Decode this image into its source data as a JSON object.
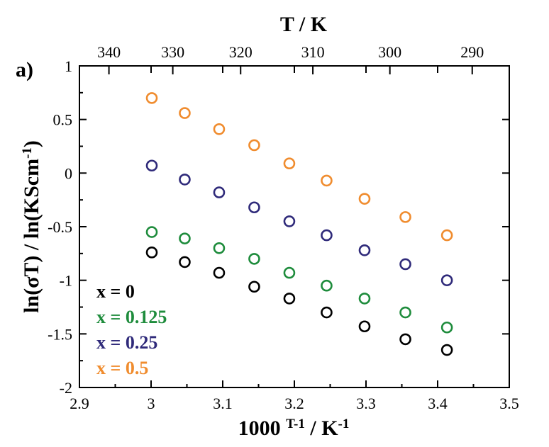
{
  "chart_data": {
    "type": "scatter",
    "panel_label": "a)",
    "xlabel": "1000 T-1 / K-1",
    "xlabel_parts": {
      "base": "1000 ",
      "sup1": "T-1",
      "mid": " / K",
      "sup2": "-1"
    },
    "ylabel": "ln(σT) / ln(KScm-1)",
    "ylabel_parts": {
      "base": "ln(σT) / ln(KScm",
      "sup": "-1",
      "end": ")"
    },
    "top_xlabel": "T / K",
    "xlim": [
      2.9,
      3.5
    ],
    "ylim": [
      -2,
      1
    ],
    "x_ticks": [
      "2.9",
      "3",
      "3.1",
      "3.2",
      "3.3",
      "3.4",
      "3.5"
    ],
    "y_ticks": [
      "1",
      "0.5",
      "0",
      "-0.5",
      "-1",
      "-1.5",
      "-2"
    ],
    "top_ticks": [
      "340",
      "330",
      "320",
      "310",
      "300",
      "290"
    ],
    "legend_position": "bottom-left",
    "x": [
      3.001,
      3.047,
      3.095,
      3.144,
      3.193,
      3.245,
      3.298,
      3.355,
      3.413
    ],
    "series": [
      {
        "name": "x = 0",
        "color": "#000000",
        "values": [
          -0.74,
          -0.83,
          -0.93,
          -1.06,
          -1.17,
          -1.3,
          -1.43,
          -1.55,
          -1.65
        ]
      },
      {
        "name": "x = 0.125",
        "color": "#1e8c3c",
        "values": [
          -0.55,
          -0.61,
          -0.7,
          -0.8,
          -0.93,
          -1.05,
          -1.17,
          -1.3,
          -1.44
        ]
      },
      {
        "name": "x = 0.25",
        "color": "#2f2a7a",
        "values": [
          0.07,
          -0.06,
          -0.18,
          -0.32,
          -0.45,
          -0.58,
          -0.72,
          -0.85,
          -1.0
        ]
      },
      {
        "name": "x = 0.5",
        "color": "#f08c2e",
        "values": [
          0.7,
          0.56,
          0.41,
          0.26,
          0.09,
          -0.07,
          -0.24,
          -0.41,
          -0.58
        ]
      }
    ]
  }
}
